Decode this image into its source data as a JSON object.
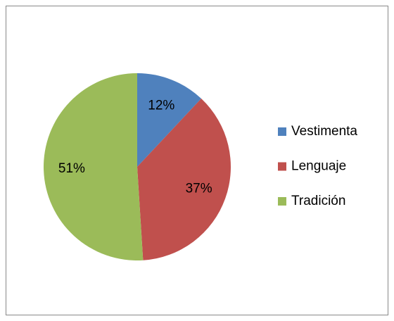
{
  "chart_data": {
    "type": "pie",
    "categories": [
      "Vestimenta",
      "Lenguaje",
      "Tradición"
    ],
    "values": [
      12,
      37,
      51
    ],
    "value_labels": [
      "12%",
      "37%",
      "51%"
    ],
    "colors": [
      "#4f81bd",
      "#c0504d",
      "#9bbb59"
    ],
    "legend": "right"
  }
}
